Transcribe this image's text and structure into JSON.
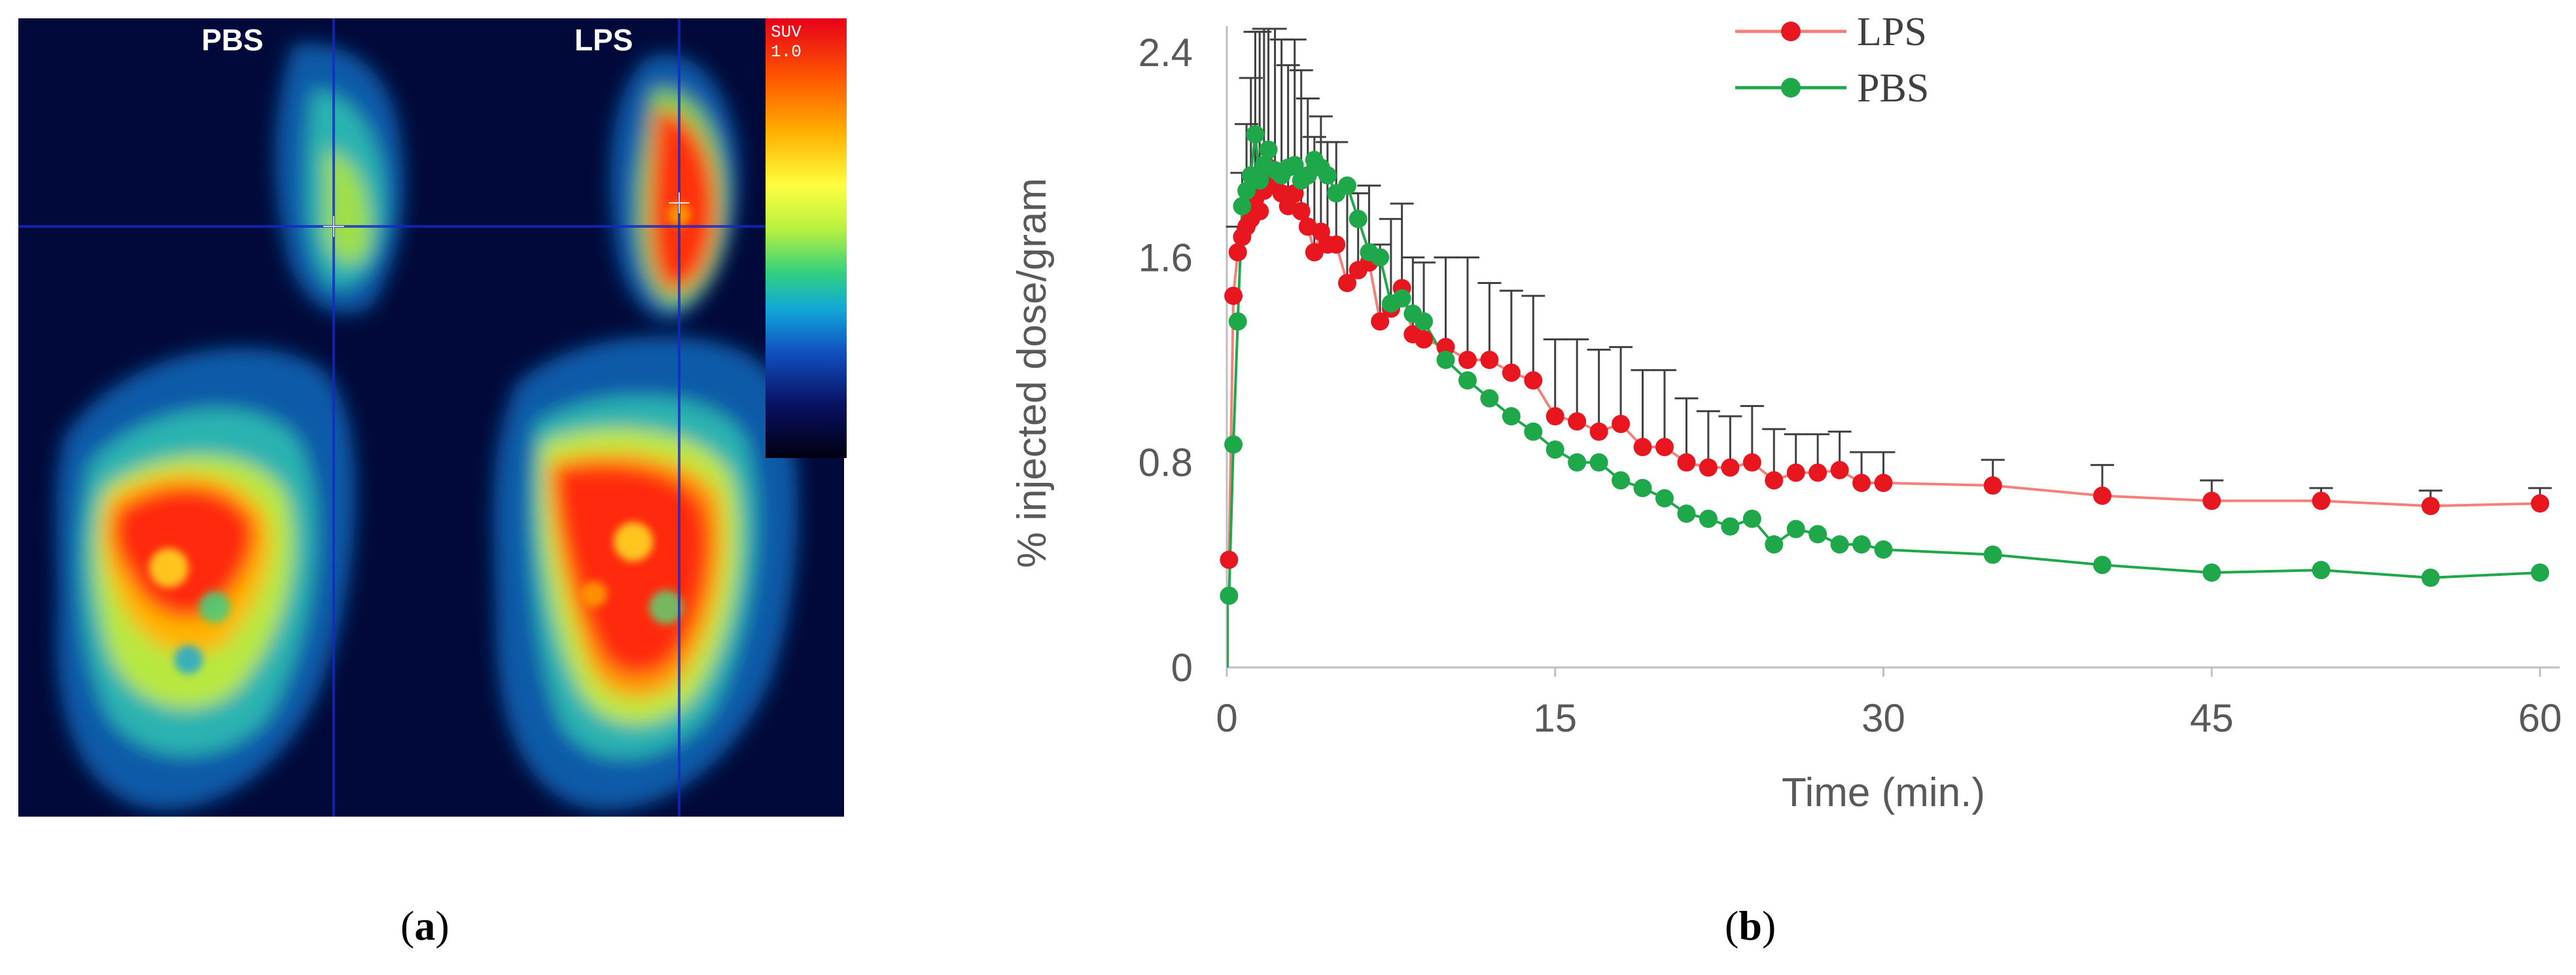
{
  "panel_a": {
    "label_left": "PBS",
    "label_right": "LPS",
    "colorbar_label": "SUV\n1.0",
    "caption_letter": "a"
  },
  "panel_b": {
    "caption_letter": "b"
  },
  "colors": {
    "lps_line": "#f4807a",
    "lps_marker": "#e8161e",
    "pbs_line": "#1ea84a",
    "pbs_marker": "#1ea84a",
    "errorbar": "#404040",
    "axis": "#bfbfbf"
  },
  "chart_data": {
    "type": "line",
    "title": "",
    "xlabel": "Time (min.)",
    "ylabel": "% injected dose/gram",
    "xlim": [
      0,
      60
    ],
    "ylim": [
      0,
      2.4
    ],
    "xticks": [
      0,
      15,
      30,
      45,
      60
    ],
    "yticks": [
      0,
      0.8,
      1.6,
      2.4
    ],
    "ytick_labels": [
      "0",
      "0.8",
      "1.6",
      "2.4"
    ],
    "legend_position": "top-center",
    "series": [
      {
        "name": "LPS",
        "x": [
          0.1,
          0.3,
          0.5,
          0.7,
          0.9,
          1.1,
          1.3,
          1.5,
          1.7,
          1.9,
          2.2,
          2.5,
          2.8,
          3.1,
          3.4,
          3.7,
          4.0,
          4.3,
          4.6,
          5.0,
          5.5,
          6.0,
          6.5,
          7.0,
          7.5,
          8.0,
          8.5,
          9.0,
          10.0,
          11.0,
          12.0,
          13.0,
          14.0,
          15.0,
          16.0,
          17.0,
          18.0,
          19.0,
          20.0,
          21.0,
          22.0,
          23.0,
          24.0,
          25.0,
          26.0,
          27.0,
          28.0,
          29.0,
          30.0,
          35.0,
          40.0,
          45.0,
          50.0,
          55.0,
          60.0
        ],
        "y": [
          0.42,
          1.45,
          1.62,
          1.68,
          1.72,
          1.75,
          1.83,
          1.78,
          1.86,
          1.95,
          1.9,
          1.85,
          1.8,
          1.85,
          1.78,
          1.72,
          1.62,
          1.7,
          1.65,
          1.65,
          1.5,
          1.55,
          1.58,
          1.35,
          1.4,
          1.48,
          1.3,
          1.28,
          1.25,
          1.2,
          1.2,
          1.15,
          1.12,
          0.98,
          0.96,
          0.92,
          0.95,
          0.86,
          0.86,
          0.8,
          0.78,
          0.78,
          0.8,
          0.73,
          0.76,
          0.76,
          0.77,
          0.72,
          0.72,
          0.71,
          0.67,
          0.65,
          0.65,
          0.63,
          0.64
        ],
        "err": [
          0,
          0,
          0.1,
          0.25,
          0.4,
          0.55,
          0.65,
          0.7,
          0.75,
          0.7,
          0.65,
          0.6,
          0.55,
          0.6,
          0.55,
          0.5,
          0.45,
          0.45,
          0.4,
          0.4,
          0.35,
          0.3,
          0.3,
          0.3,
          0.35,
          0.33,
          0.3,
          0.3,
          0.35,
          0.4,
          0.3,
          0.32,
          0.33,
          0.3,
          0.32,
          0.32,
          0.3,
          0.3,
          0.3,
          0.25,
          0.22,
          0.2,
          0.22,
          0.2,
          0.15,
          0.15,
          0.15,
          0.12,
          0.12,
          0.1,
          0.12,
          0.08,
          0.05,
          0.06,
          0.06
        ]
      },
      {
        "name": "PBS",
        "x": [
          0.1,
          0.3,
          0.5,
          0.7,
          0.9,
          1.1,
          1.3,
          1.5,
          1.7,
          1.9,
          2.2,
          2.5,
          2.8,
          3.1,
          3.4,
          3.7,
          4.0,
          4.3,
          4.6,
          5.0,
          5.5,
          6.0,
          6.5,
          7.0,
          7.5,
          8.0,
          8.5,
          9.0,
          10.0,
          11.0,
          12.0,
          13.0,
          14.0,
          15.0,
          16.0,
          17.0,
          18.0,
          19.0,
          20.0,
          21.0,
          22.0,
          23.0,
          24.0,
          25.0,
          26.0,
          27.0,
          28.0,
          29.0,
          30.0,
          35.0,
          40.0,
          45.0,
          50.0,
          55.0,
          60.0
        ],
        "y": [
          0.28,
          0.87,
          1.35,
          1.8,
          1.86,
          1.92,
          2.08,
          1.9,
          1.96,
          2.02,
          1.94,
          1.92,
          1.95,
          1.96,
          1.9,
          1.92,
          1.98,
          1.95,
          1.92,
          1.85,
          1.88,
          1.75,
          1.62,
          1.6,
          1.42,
          1.44,
          1.38,
          1.35,
          1.2,
          1.12,
          1.05,
          0.98,
          0.92,
          0.85,
          0.8,
          0.8,
          0.73,
          0.7,
          0.66,
          0.6,
          0.58,
          0.55,
          0.58,
          0.48,
          0.54,
          0.52,
          0.48,
          0.48,
          0.46,
          0.44,
          0.4,
          0.37,
          0.38,
          0.35,
          0.37
        ]
      }
    ]
  }
}
